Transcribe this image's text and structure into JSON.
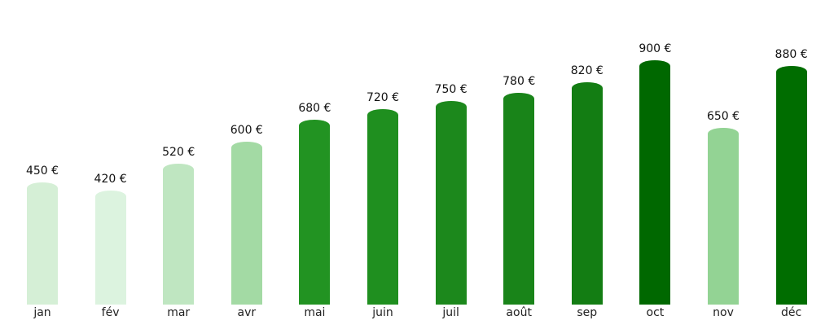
{
  "chart_data": {
    "type": "bar",
    "title": "",
    "xlabel": "",
    "ylabel": "",
    "categories": [
      "jan",
      "fév",
      "mar",
      "avr",
      "mai",
      "juin",
      "juil",
      "août",
      "sep",
      "oct",
      "nov",
      "déc"
    ],
    "values": [
      450,
      420,
      520,
      600,
      680,
      720,
      750,
      780,
      820,
      900,
      650,
      880
    ],
    "value_labels": [
      "450 €",
      "420 €",
      "520 €",
      "600 €",
      "680 €",
      "720 €",
      "750 €",
      "780 €",
      "820 €",
      "900 €",
      "650 €",
      "880 €"
    ],
    "colors": [
      "#d5efd6",
      "#dcf3df",
      "#bfe6c1",
      "#a3daa4",
      "#229322",
      "#1f8f1f",
      "#1c881c",
      "#198419",
      "#137d13",
      "#006800",
      "#93d394",
      "#006d00"
    ],
    "unit": "€",
    "ylim": [
      0,
      900
    ],
    "grid": false,
    "legend": null
  }
}
